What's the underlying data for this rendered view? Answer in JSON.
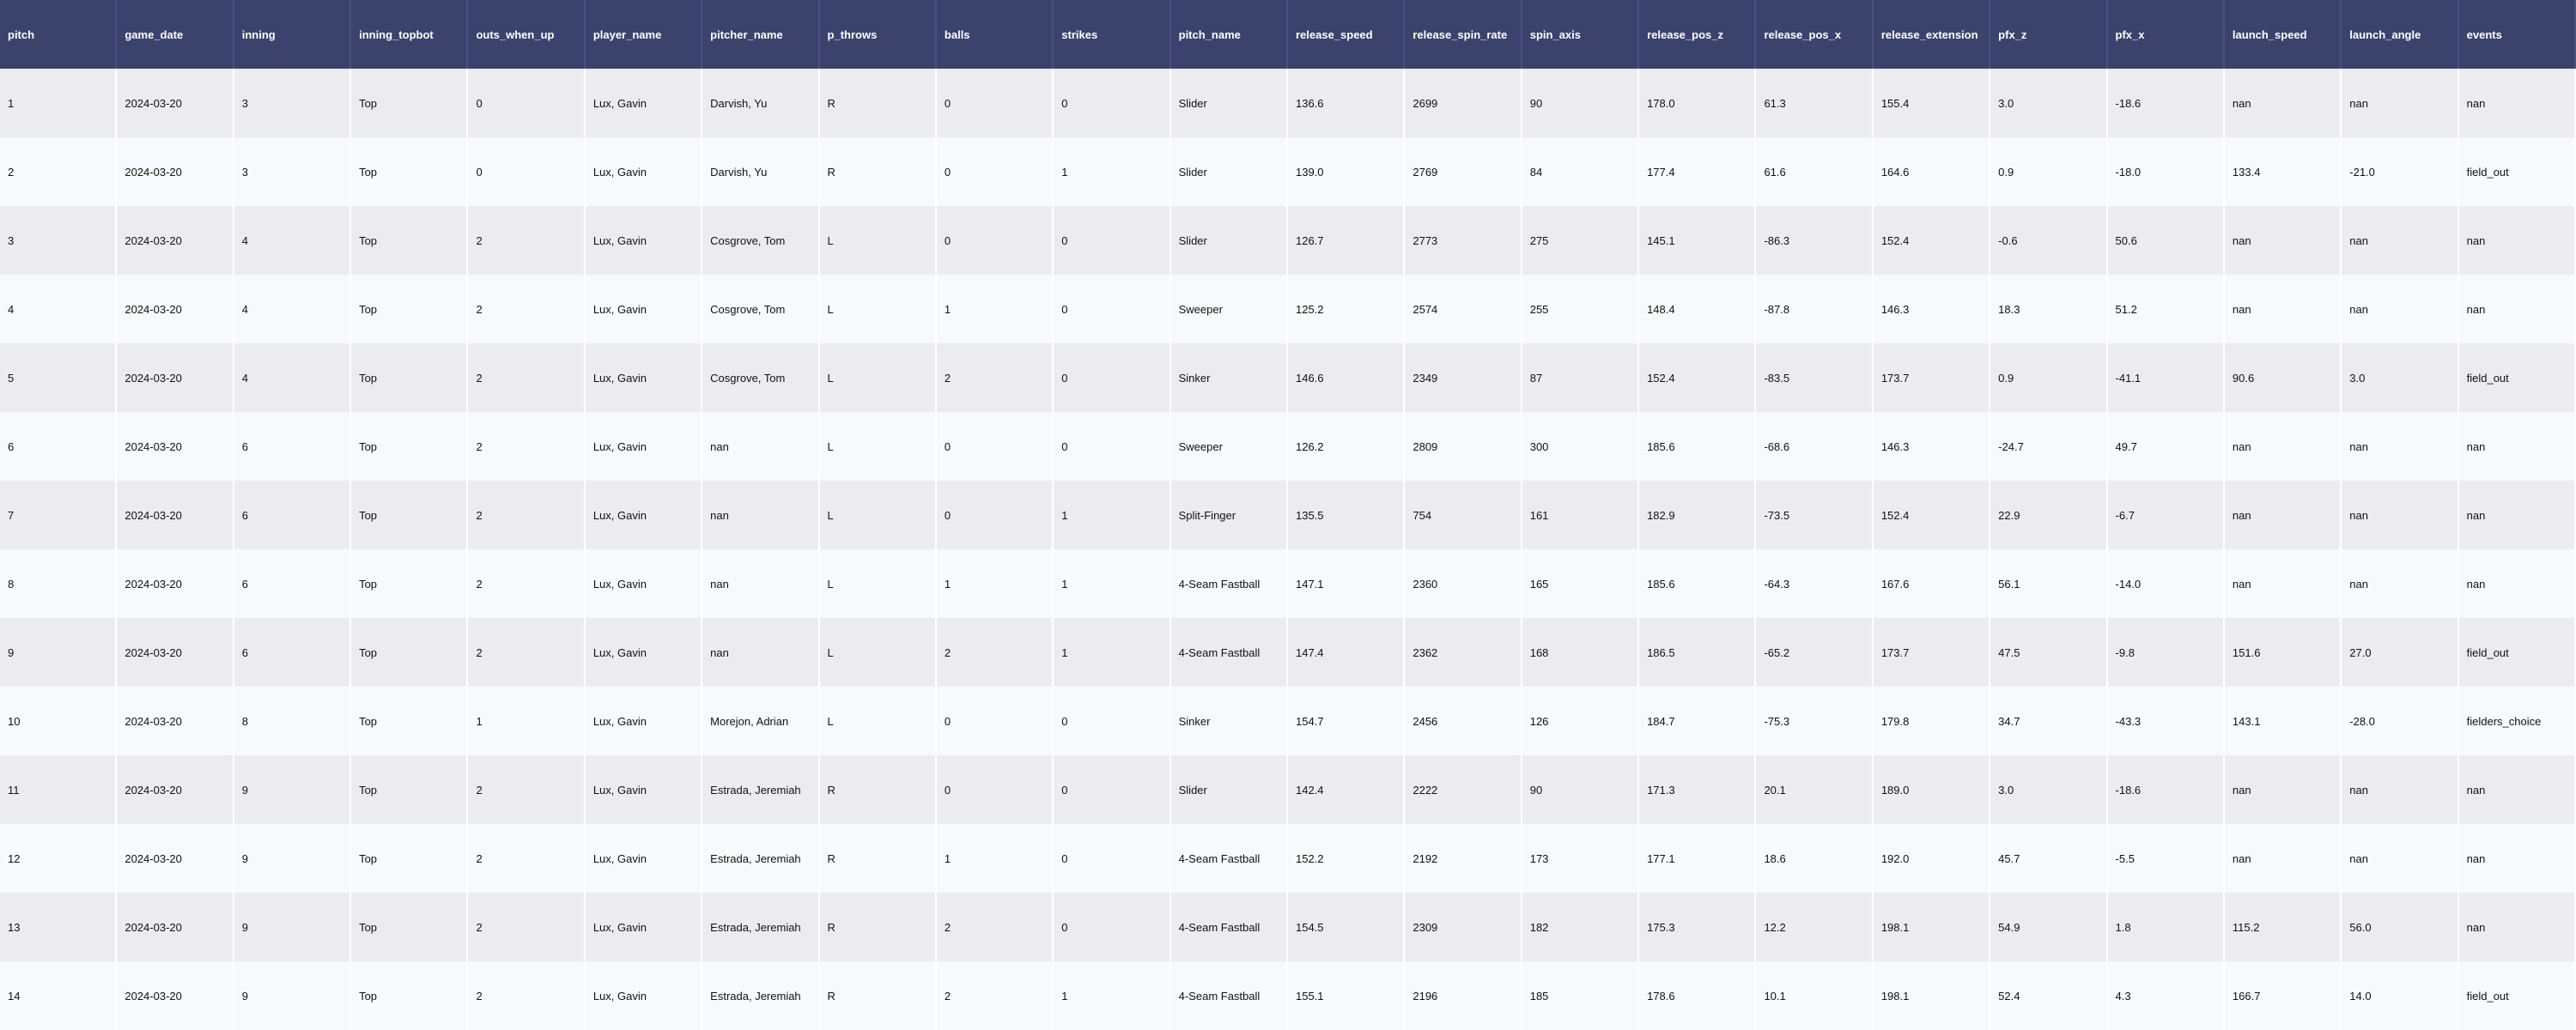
{
  "table": {
    "columns": [
      "pitch",
      "game_date",
      "inning",
      "inning_topbot",
      "outs_when_up",
      "player_name",
      "pitcher_name",
      "p_throws",
      "balls",
      "strikes",
      "pitch_name",
      "release_speed",
      "release_spin_rate",
      "spin_axis",
      "release_pos_z",
      "release_pos_x",
      "release_extension",
      "pfx_z",
      "pfx_x",
      "launch_speed",
      "launch_angle",
      "events"
    ],
    "rows": [
      [
        "1",
        "2024-03-20",
        "3",
        "Top",
        "0",
        "Lux, Gavin",
        "Darvish, Yu",
        "R",
        "0",
        "0",
        "Slider",
        "136.6",
        "2699",
        "90",
        "178.0",
        "61.3",
        "155.4",
        "3.0",
        "-18.6",
        "nan",
        "nan",
        "nan"
      ],
      [
        "2",
        "2024-03-20",
        "3",
        "Top",
        "0",
        "Lux, Gavin",
        "Darvish, Yu",
        "R",
        "0",
        "1",
        "Slider",
        "139.0",
        "2769",
        "84",
        "177.4",
        "61.6",
        "164.6",
        "0.9",
        "-18.0",
        "133.4",
        "-21.0",
        "field_out"
      ],
      [
        "3",
        "2024-03-20",
        "4",
        "Top",
        "2",
        "Lux, Gavin",
        "Cosgrove, Tom",
        "L",
        "0",
        "0",
        "Slider",
        "126.7",
        "2773",
        "275",
        "145.1",
        "-86.3",
        "152.4",
        "-0.6",
        "50.6",
        "nan",
        "nan",
        "nan"
      ],
      [
        "4",
        "2024-03-20",
        "4",
        "Top",
        "2",
        "Lux, Gavin",
        "Cosgrove, Tom",
        "L",
        "1",
        "0",
        "Sweeper",
        "125.2",
        "2574",
        "255",
        "148.4",
        "-87.8",
        "146.3",
        "18.3",
        "51.2",
        "nan",
        "nan",
        "nan"
      ],
      [
        "5",
        "2024-03-20",
        "4",
        "Top",
        "2",
        "Lux, Gavin",
        "Cosgrove, Tom",
        "L",
        "2",
        "0",
        "Sinker",
        "146.6",
        "2349",
        "87",
        "152.4",
        "-83.5",
        "173.7",
        "0.9",
        "-41.1",
        "90.6",
        "3.0",
        "field_out"
      ],
      [
        "6",
        "2024-03-20",
        "6",
        "Top",
        "2",
        "Lux, Gavin",
        "nan",
        "L",
        "0",
        "0",
        "Sweeper",
        "126.2",
        "2809",
        "300",
        "185.6",
        "-68.6",
        "146.3",
        "-24.7",
        "49.7",
        "nan",
        "nan",
        "nan"
      ],
      [
        "7",
        "2024-03-20",
        "6",
        "Top",
        "2",
        "Lux, Gavin",
        "nan",
        "L",
        "0",
        "1",
        "Split-Finger",
        "135.5",
        "754",
        "161",
        "182.9",
        "-73.5",
        "152.4",
        "22.9",
        "-6.7",
        "nan",
        "nan",
        "nan"
      ],
      [
        "8",
        "2024-03-20",
        "6",
        "Top",
        "2",
        "Lux, Gavin",
        "nan",
        "L",
        "1",
        "1",
        "4-Seam Fastball",
        "147.1",
        "2360",
        "165",
        "185.6",
        "-64.3",
        "167.6",
        "56.1",
        "-14.0",
        "nan",
        "nan",
        "nan"
      ],
      [
        "9",
        "2024-03-20",
        "6",
        "Top",
        "2",
        "Lux, Gavin",
        "nan",
        "L",
        "2",
        "1",
        "4-Seam Fastball",
        "147.4",
        "2362",
        "168",
        "186.5",
        "-65.2",
        "173.7",
        "47.5",
        "-9.8",
        "151.6",
        "27.0",
        "field_out"
      ],
      [
        "10",
        "2024-03-20",
        "8",
        "Top",
        "1",
        "Lux, Gavin",
        "Morejon, Adrian",
        "L",
        "0",
        "0",
        "Sinker",
        "154.7",
        "2456",
        "126",
        "184.7",
        "-75.3",
        "179.8",
        "34.7",
        "-43.3",
        "143.1",
        "-28.0",
        "fielders_choice"
      ],
      [
        "11",
        "2024-03-20",
        "9",
        "Top",
        "2",
        "Lux, Gavin",
        "Estrada, Jeremiah",
        "R",
        "0",
        "0",
        "Slider",
        "142.4",
        "2222",
        "90",
        "171.3",
        "20.1",
        "189.0",
        "3.0",
        "-18.6",
        "nan",
        "nan",
        "nan"
      ],
      [
        "12",
        "2024-03-20",
        "9",
        "Top",
        "2",
        "Lux, Gavin",
        "Estrada, Jeremiah",
        "R",
        "1",
        "0",
        "4-Seam Fastball",
        "152.2",
        "2192",
        "173",
        "177.1",
        "18.6",
        "192.0",
        "45.7",
        "-5.5",
        "nan",
        "nan",
        "nan"
      ],
      [
        "13",
        "2024-03-20",
        "9",
        "Top",
        "2",
        "Lux, Gavin",
        "Estrada, Jeremiah",
        "R",
        "2",
        "0",
        "4-Seam Fastball",
        "154.5",
        "2309",
        "182",
        "175.3",
        "12.2",
        "198.1",
        "54.9",
        "1.8",
        "115.2",
        "56.0",
        "nan"
      ],
      [
        "14",
        "2024-03-20",
        "9",
        "Top",
        "2",
        "Lux, Gavin",
        "Estrada, Jeremiah",
        "R",
        "2",
        "1",
        "4-Seam Fastball",
        "155.1",
        "2196",
        "185",
        "178.6",
        "10.1",
        "198.1",
        "52.4",
        "4.3",
        "166.7",
        "14.0",
        "field_out"
      ]
    ]
  }
}
